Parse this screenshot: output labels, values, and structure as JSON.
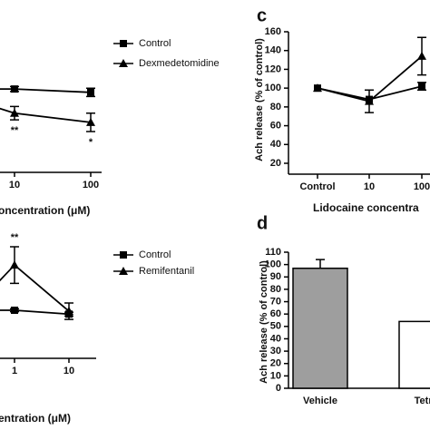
{
  "chart_data": [
    {
      "type": "line",
      "x_label": "oncentration (μM)",
      "categories": [
        null,
        "10",
        "100"
      ],
      "ylim": [
        0,
        160
      ],
      "series": [
        {
          "name": "Control",
          "color": "#000000",
          "marker": "square",
          "values": [
            100,
            100,
            96
          ],
          "errors": [
            null,
            3,
            5
          ]
        },
        {
          "name": "Dexmedetomidine",
          "color": "#000000",
          "marker": "triangle",
          "values": [
            100,
            71,
            60
          ],
          "errors": [
            null,
            8,
            11
          ],
          "annotations": [
            null,
            "**",
            "*"
          ]
        }
      ]
    },
    {
      "type": "line",
      "x_label": "entration (μM)",
      "categories": [
        null,
        "1",
        "10"
      ],
      "ylim": [
        0,
        250
      ],
      "series": [
        {
          "name": "Control",
          "color": "#000000",
          "marker": "square",
          "values": [
            100,
            100,
            92
          ],
          "errors": [
            null,
            3,
            4
          ]
        },
        {
          "name": "Remifentanil",
          "color": "#000000",
          "marker": "triangle",
          "values": [
            75,
            194,
            98
          ],
          "errors": [
            null,
            38,
            17
          ],
          "annotations": [
            null,
            "**",
            null
          ]
        }
      ]
    },
    {
      "type": "line",
      "panel_label": "c",
      "x_label": "Lidocaine concentra",
      "y_label": "Ach release (% of control)",
      "categories": [
        "Control",
        "10",
        "100"
      ],
      "ylim": [
        20,
        160
      ],
      "yticks": [
        20,
        40,
        60,
        80,
        100,
        120,
        140,
        160
      ],
      "series": [
        {
          "color": "#000000",
          "marker": "square",
          "values": [
            100,
            88,
            102
          ],
          "errors": [
            null,
            null,
            4
          ]
        },
        {
          "color": "#000000",
          "marker": "triangle",
          "values": [
            100,
            86,
            134
          ],
          "errors": [
            null,
            12,
            20
          ]
        }
      ]
    },
    {
      "type": "bar",
      "panel_label": "d",
      "y_label": "Ach release (% of control)",
      "categories": [
        "Vehicle",
        "Tetro"
      ],
      "ylim": [
        0,
        110
      ],
      "yticks": [
        0,
        10,
        20,
        30,
        40,
        50,
        60,
        70,
        80,
        90,
        100,
        110
      ],
      "values": [
        97,
        54
      ],
      "errors": [
        7,
        null
      ],
      "colors": [
        "#9e9e9e",
        "#ffffff"
      ]
    }
  ]
}
